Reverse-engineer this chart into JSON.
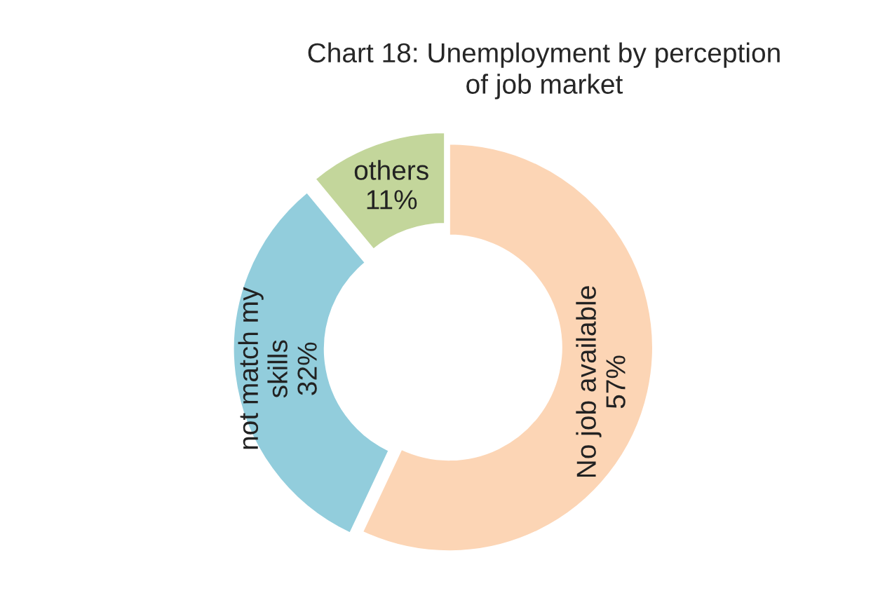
{
  "chart_data": {
    "type": "donut",
    "title": "Chart 18: Unemployment by perception\nof job market",
    "categories": [
      "No job available",
      "not match my\nskills",
      "others"
    ],
    "values": [
      57,
      32,
      11
    ],
    "value_labels": [
      "57%",
      "32%",
      "11%"
    ],
    "colors": [
      "#fcd5b5",
      "#92cddc",
      "#c3d69b"
    ],
    "legend": false
  }
}
